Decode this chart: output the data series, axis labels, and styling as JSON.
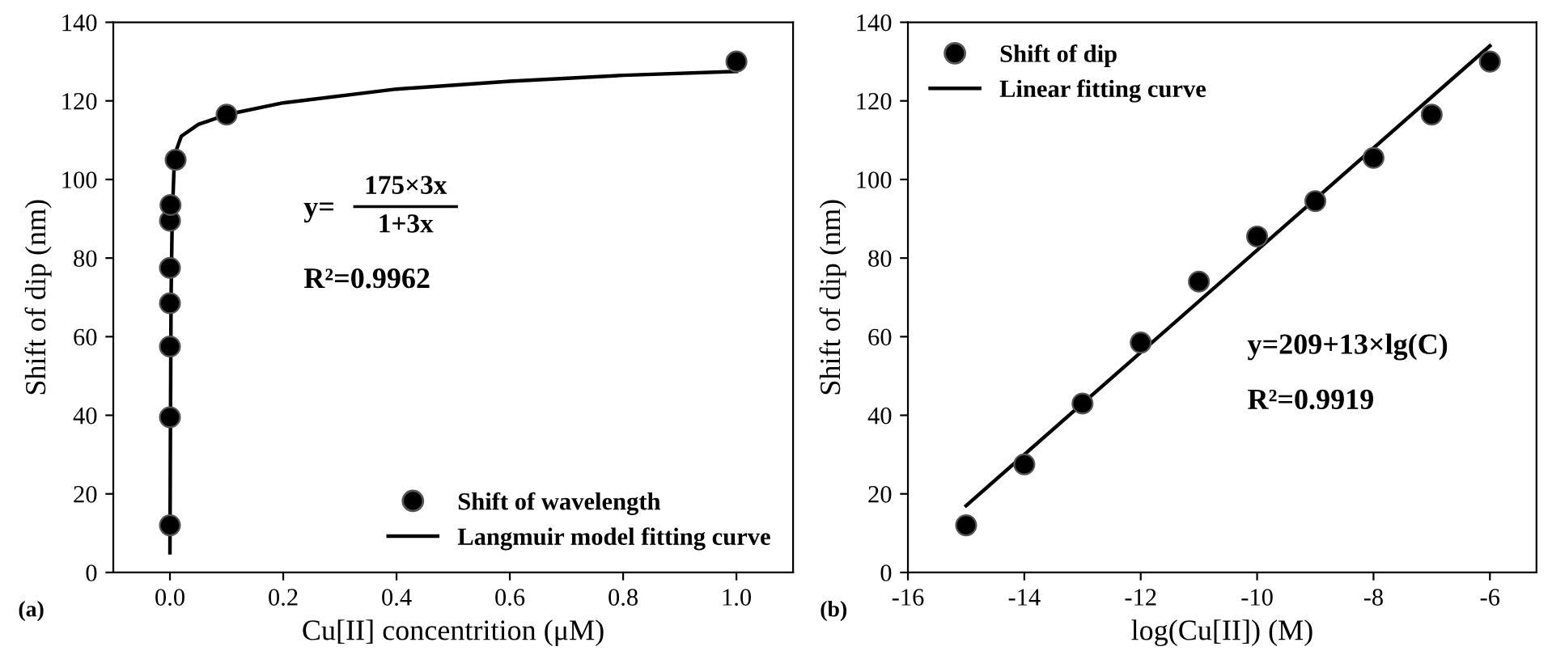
{
  "chart_data": [
    {
      "type": "scatter",
      "xlabel": "Cu[II] concentrition (μM)",
      "ylabel": "Shift of dip (nm)",
      "xlim": [
        -0.1,
        1.1
      ],
      "ylim": [
        0,
        140
      ],
      "xticks": [
        {
          "value": 0,
          "label": "0.0"
        },
        {
          "value": 0.2,
          "label": "0.2"
        },
        {
          "value": 0.4,
          "label": "0.4"
        },
        {
          "value": 0.6,
          "label": "0.6"
        },
        {
          "value": 0.8,
          "label": "0.8"
        },
        {
          "value": 1.0,
          "label": "1.0"
        }
      ],
      "yticks": [
        0,
        20,
        40,
        60,
        80,
        100,
        120,
        140
      ],
      "legend": "bottom right",
      "grid": false,
      "series": [
        {
          "name": "Shift of wavelength",
          "marker": "circle",
          "color": "#000000",
          "x": [
            1e-09,
            1e-08,
            1e-07,
            1e-06,
            1e-05,
            0.0001,
            0.001,
            0.01,
            0.1,
            1.0
          ],
          "values": [
            12,
            39.5,
            57.5,
            68.5,
            77.5,
            89.5,
            93.5,
            105,
            116.5,
            130
          ]
        },
        {
          "name": "Langmuir model fitting curve",
          "type": "line",
          "marker": "none",
          "line_style": "solid",
          "color": "#000000",
          "x": [
            0,
            0.001,
            0.002,
            0.004,
            0.007,
            0.01,
            0.02,
            0.05,
            0.1,
            0.2,
            0.4,
            0.6,
            0.8,
            1.0
          ],
          "values": [
            5,
            40,
            70,
            90,
            102,
            107,
            111,
            114,
            116.5,
            119.5,
            123,
            125,
            126.5,
            127.5
          ]
        }
      ],
      "annotations": [
        "(a)",
        "y=",
        "175×3x",
        "1+3x",
        "R²=0.9962"
      ]
    },
    {
      "type": "scatter",
      "xlabel": "log(Cu[II]) (M)",
      "ylabel": "Shift of dip (nm)",
      "xlim": [
        -16,
        -5.2
      ],
      "ylim": [
        0,
        140
      ],
      "xticks": [
        {
          "value": -16,
          "label": "-16"
        },
        {
          "value": -14,
          "label": "-14"
        },
        {
          "value": -12,
          "label": "-12"
        },
        {
          "value": -10,
          "label": "-10"
        },
        {
          "value": -8,
          "label": "-8"
        },
        {
          "value": -6,
          "label": "-6"
        }
      ],
      "yticks": [
        0,
        20,
        40,
        60,
        80,
        100,
        120,
        140
      ],
      "legend": "top left",
      "grid": false,
      "series": [
        {
          "name": "Shift of dip",
          "marker": "circle",
          "color": "#000000",
          "x": [
            -15,
            -14,
            -13,
            -12,
            -11,
            -10,
            -9,
            -8,
            -7,
            -6
          ],
          "values": [
            12,
            27.5,
            43,
            58.5,
            74,
            85.5,
            94.5,
            105.5,
            116.5,
            130
          ]
        },
        {
          "name": "Linear fitting curve",
          "type": "line",
          "marker": "none",
          "line_style": "solid",
          "color": "#000000",
          "x": [
            -15,
            -6
          ],
          "values": [
            17,
            134
          ]
        }
      ],
      "annotations": [
        "(b)",
        "y=209+13×lg(C)",
        "R²=0.9919"
      ]
    }
  ]
}
